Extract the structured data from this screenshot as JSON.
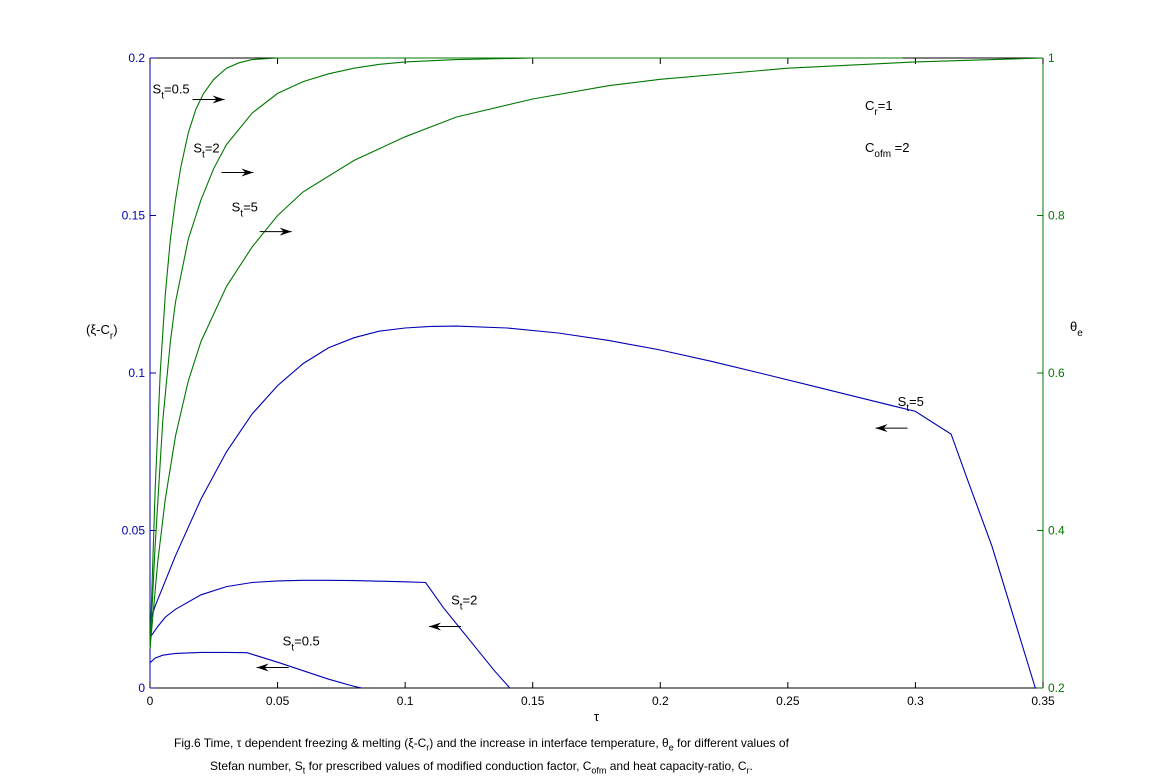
{
  "chart_data": {
    "type": "line",
    "x_label": "τ",
    "y_left_label": "(ξ-C_r)",
    "y_right_label": "θ_e",
    "xlim": [
      0,
      0.35
    ],
    "ylim_left": [
      0,
      0.2
    ],
    "ylim_right": [
      0.2,
      1
    ],
    "x_ticks": [
      "0",
      "0.05",
      "0.1",
      "0.15",
      "0.2",
      "0.25",
      "0.3",
      "0.35"
    ],
    "y_left_ticks": [
      "0",
      "0.05",
      "0.1",
      "0.15",
      "0.2"
    ],
    "y_right_ticks": [
      "0.2",
      "0.4",
      "0.6",
      "0.8",
      "1"
    ],
    "colors": {
      "xi_curves": "#0000b4",
      "theta_curves": "#007800",
      "axis_left": "#0000b4",
      "axis_right": "#007800"
    },
    "series": [
      {
        "name": "S_t=0.5",
        "axis": "left",
        "color": "#0000b4",
        "x": [
          0,
          0.002,
          0.005,
          0.01,
          0.02,
          0.03,
          0.038,
          0.05,
          0.06,
          0.07,
          0.08,
          0.083
        ],
        "y": [
          0.008,
          0.0095,
          0.0104,
          0.011,
          0.0113,
          0.0113,
          0.0112,
          0.0082,
          0.0055,
          0.0028,
          0.0005,
          0
        ]
      },
      {
        "name": "S_t=2",
        "axis": "left",
        "color": "#0000b4",
        "x": [
          0,
          0.003,
          0.006,
          0.01,
          0.02,
          0.03,
          0.04,
          0.05,
          0.06,
          0.07,
          0.08,
          0.09,
          0.1,
          0.108,
          0.115,
          0.125,
          0.135,
          0.141
        ],
        "y": [
          0.016,
          0.0195,
          0.0225,
          0.025,
          0.0296,
          0.0322,
          0.0335,
          0.034,
          0.0342,
          0.0342,
          0.0341,
          0.0339,
          0.0337,
          0.0335,
          0.0255,
          0.0155,
          0.0055,
          0
        ]
      },
      {
        "name": "S_t=5",
        "axis": "left",
        "color": "#0000b4",
        "x": [
          0,
          0.002,
          0.005,
          0.01,
          0.02,
          0.03,
          0.04,
          0.05,
          0.06,
          0.07,
          0.08,
          0.09,
          0.1,
          0.11,
          0.12,
          0.14,
          0.16,
          0.18,
          0.2,
          0.22,
          0.24,
          0.26,
          0.28,
          0.3,
          0.314,
          0.32,
          0.33,
          0.34,
          0.347
        ],
        "y": [
          0.021,
          0.026,
          0.032,
          0.042,
          0.06,
          0.075,
          0.087,
          0.096,
          0.103,
          0.108,
          0.1112,
          0.1133,
          0.1143,
          0.1148,
          0.1149,
          0.1143,
          0.1127,
          0.1103,
          0.1073,
          0.1037,
          0.0998,
          0.0958,
          0.0918,
          0.0878,
          0.0806,
          0.067,
          0.045,
          0.0185,
          0
        ]
      },
      {
        "name": "S_t=0.5",
        "axis": "right",
        "color": "#007800",
        "x": [
          0,
          0.002,
          0.004,
          0.006,
          0.008,
          0.01,
          0.012,
          0.015,
          0.018,
          0.021,
          0.025,
          0.03,
          0.035,
          0.04,
          0.05,
          0.06,
          0.08,
          0.1,
          0.15,
          0.2,
          0.25,
          0.295
        ],
        "y": [
          0.25,
          0.45,
          0.6,
          0.7,
          0.77,
          0.82,
          0.86,
          0.905,
          0.935,
          0.955,
          0.973,
          0.987,
          0.994,
          0.998,
          1.0,
          1.0,
          1.0,
          1.0,
          1.0,
          1.0,
          1.0,
          1.0
        ]
      },
      {
        "name": "S_t=2",
        "axis": "right",
        "color": "#007800",
        "x": [
          0,
          0.002,
          0.005,
          0.008,
          0.01,
          0.015,
          0.02,
          0.025,
          0.03,
          0.04,
          0.05,
          0.06,
          0.07,
          0.08,
          0.09,
          0.1,
          0.12,
          0.15,
          0.2,
          0.25,
          0.295
        ],
        "y": [
          0.25,
          0.38,
          0.54,
          0.64,
          0.69,
          0.77,
          0.82,
          0.86,
          0.89,
          0.93,
          0.955,
          0.97,
          0.98,
          0.987,
          0.992,
          0.995,
          0.998,
          1.0,
          1.0,
          1.0,
          1.0
        ]
      },
      {
        "name": "S_t=5",
        "axis": "right",
        "color": "#007800",
        "x": [
          0,
          0.003,
          0.006,
          0.01,
          0.015,
          0.02,
          0.03,
          0.04,
          0.05,
          0.06,
          0.08,
          0.1,
          0.12,
          0.15,
          0.18,
          0.2,
          0.25,
          0.3,
          0.35
        ],
        "y": [
          0.25,
          0.36,
          0.44,
          0.52,
          0.59,
          0.64,
          0.71,
          0.76,
          0.8,
          0.83,
          0.87,
          0.9,
          0.925,
          0.948,
          0.965,
          0.973,
          0.987,
          0.995,
          1.0
        ]
      }
    ],
    "annotations": [
      {
        "text": "S_t=0.5",
        "x": 0.001,
        "y_right": 0.955,
        "arrow": "right"
      },
      {
        "text": "S_t=2",
        "x": 0.017,
        "y_right": 0.88,
        "arrow": "right"
      },
      {
        "text": "S_t=5",
        "x": 0.032,
        "y_right": 0.805,
        "arrow": "right"
      },
      {
        "text": "S_t=5",
        "x": 0.293,
        "y_left": 0.0895,
        "arrow": "left"
      },
      {
        "text": "S_t=2",
        "x": 0.118,
        "y_left": 0.0265,
        "arrow": "left"
      },
      {
        "text": "S_t=0.5",
        "x": 0.052,
        "y_left": 0.0135,
        "arrow": "left"
      }
    ],
    "params": [
      "C_r=1",
      "C_ofm =2"
    ]
  },
  "caption": {
    "line1": "Fig.6 Time, τ dependent freezing & melting (ξ-C_r) and the increase in interface temperature, θ_e for different values of",
    "line2": "Stefan number, S_t for prescribed values of modified conduction factor, C_ofm and heat capacity-ratio, C_r."
  }
}
